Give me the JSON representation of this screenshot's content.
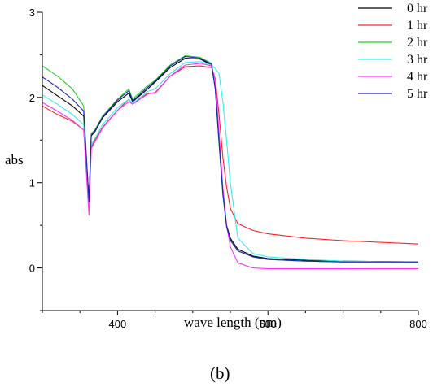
{
  "chart_data": {
    "type": "line",
    "xlabel": "wave length (nm)",
    "ylabel": "abs",
    "caption": "(b)",
    "xlim": [
      300,
      800
    ],
    "ylim": [
      -0.5,
      3
    ],
    "xticks": [
      400,
      600,
      800
    ],
    "yticks": [
      0,
      1,
      2,
      3
    ],
    "grid": false,
    "legend_position": "top-right",
    "series": [
      {
        "name": "0 hr",
        "color": "#000000",
        "x": [
          300,
          320,
          340,
          355,
          362,
          365,
          370,
          380,
          400,
          415,
          420,
          440,
          450,
          470,
          490,
          510,
          525,
          530,
          535,
          540,
          545,
          550,
          560,
          580,
          600,
          650,
          700,
          800
        ],
        "y": [
          2.14,
          2.02,
          1.9,
          1.78,
          0.8,
          1.55,
          1.6,
          1.76,
          1.95,
          2.05,
          1.95,
          2.1,
          2.18,
          2.35,
          2.46,
          2.45,
          2.38,
          2.1,
          1.5,
          0.9,
          0.5,
          0.35,
          0.22,
          0.14,
          0.11,
          0.09,
          0.08,
          0.07
        ]
      },
      {
        "name": "1 hr",
        "color": "#ff2020",
        "x": [
          300,
          320,
          340,
          355,
          362,
          365,
          370,
          380,
          400,
          415,
          420,
          440,
          450,
          470,
          490,
          510,
          525,
          530,
          535,
          540,
          545,
          550,
          560,
          580,
          600,
          650,
          700,
          800
        ],
        "y": [
          1.9,
          1.8,
          1.72,
          1.62,
          0.8,
          1.42,
          1.5,
          1.65,
          1.85,
          1.98,
          1.92,
          2.05,
          2.05,
          2.25,
          2.36,
          2.37,
          2.35,
          2.22,
          1.8,
          1.3,
          0.95,
          0.7,
          0.52,
          0.44,
          0.4,
          0.35,
          0.32,
          0.28
        ]
      },
      {
        "name": "2 hr",
        "color": "#20d020",
        "x": [
          300,
          320,
          340,
          355,
          362,
          365,
          370,
          380,
          400,
          415,
          420,
          440,
          450,
          470,
          490,
          510,
          525,
          530,
          535,
          540,
          545,
          550,
          560,
          580,
          600,
          650,
          700,
          800
        ],
        "y": [
          2.37,
          2.25,
          2.1,
          1.9,
          0.75,
          1.58,
          1.62,
          1.78,
          1.98,
          2.1,
          1.98,
          2.14,
          2.2,
          2.38,
          2.49,
          2.47,
          2.4,
          2.1,
          1.45,
          0.85,
          0.48,
          0.32,
          0.2,
          0.13,
          0.1,
          0.08,
          0.07,
          0.07
        ]
      },
      {
        "name": "3 hr",
        "color": "#30f0f0",
        "x": [
          300,
          320,
          340,
          355,
          362,
          365,
          370,
          380,
          400,
          415,
          420,
          440,
          450,
          470,
          490,
          510,
          525,
          530,
          535,
          540,
          545,
          550,
          560,
          580,
          600,
          650,
          700,
          800
        ],
        "y": [
          2.03,
          1.92,
          1.8,
          1.68,
          0.7,
          1.45,
          1.52,
          1.68,
          1.88,
          1.98,
          1.93,
          2.07,
          2.1,
          2.28,
          2.41,
          2.42,
          2.38,
          2.34,
          2.28,
          1.95,
          1.5,
          1.0,
          0.35,
          0.17,
          0.13,
          0.1,
          0.08,
          0.07
        ]
      },
      {
        "name": "4 hr",
        "color": "#ff30ff",
        "x": [
          300,
          320,
          340,
          355,
          362,
          365,
          370,
          380,
          400,
          415,
          420,
          440,
          450,
          470,
          490,
          510,
          525,
          530,
          535,
          540,
          545,
          550,
          560,
          580,
          600,
          650,
          700,
          800
        ],
        "y": [
          1.94,
          1.84,
          1.73,
          1.62,
          0.62,
          1.4,
          1.48,
          1.64,
          1.85,
          1.95,
          1.92,
          2.04,
          2.06,
          2.25,
          2.38,
          2.4,
          2.37,
          2.2,
          1.6,
          0.95,
          0.5,
          0.25,
          0.06,
          0.0,
          -0.01,
          -0.01,
          -0.01,
          -0.01
        ]
      },
      {
        "name": "5 hr",
        "color": "#2020c0",
        "x": [
          300,
          320,
          340,
          355,
          362,
          365,
          370,
          380,
          400,
          415,
          420,
          440,
          450,
          470,
          490,
          510,
          525,
          530,
          535,
          540,
          545,
          550,
          560,
          580,
          600,
          650,
          700,
          800
        ],
        "y": [
          2.24,
          2.12,
          1.98,
          1.84,
          0.78,
          1.56,
          1.61,
          1.77,
          1.97,
          2.08,
          1.96,
          2.12,
          2.19,
          2.37,
          2.48,
          2.46,
          2.39,
          2.1,
          1.48,
          0.88,
          0.49,
          0.33,
          0.2,
          0.13,
          0.1,
          0.08,
          0.07,
          0.07
        ]
      }
    ]
  }
}
